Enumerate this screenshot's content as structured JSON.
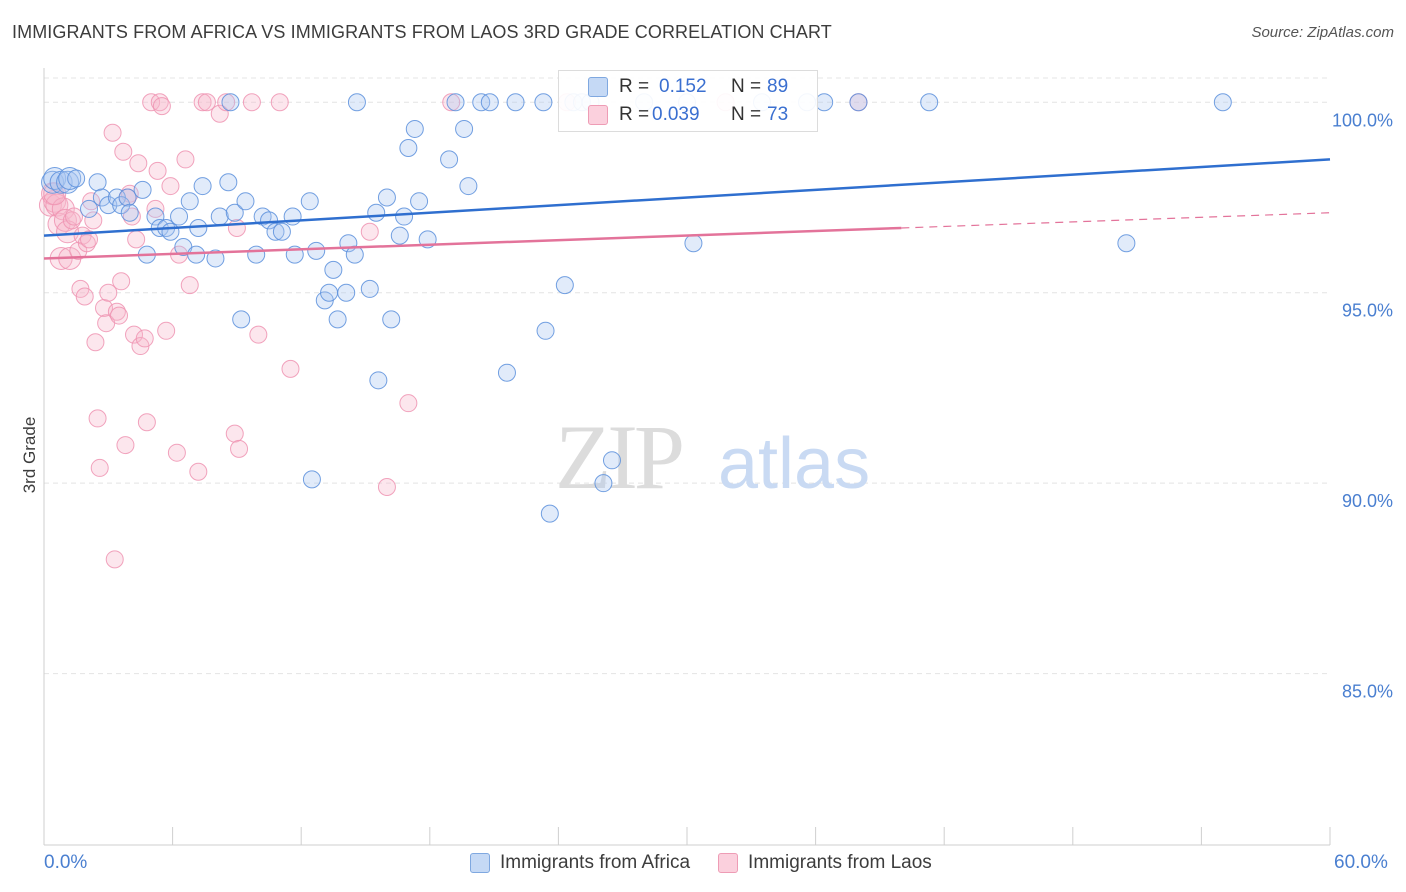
{
  "title": "IMMIGRANTS FROM AFRICA VS IMMIGRANTS FROM LAOS 3RD GRADE CORRELATION CHART",
  "source": "Source: ZipAtlas.com",
  "watermark": {
    "zip": "ZIP",
    "atlas": "atlas"
  },
  "colors": {
    "blue": "#5b8fdc",
    "blue_line": "#2f6fcf",
    "pink": "#ee8fae",
    "pink_line": "#e3739a",
    "axis_text": "#4a7fd0",
    "grid": "#e4e4e4"
  },
  "legend_box": {
    "rows": [
      {
        "r_label": "R =",
        "r_value": "0.152",
        "n_label": "N =",
        "n_value": "89"
      },
      {
        "r_label": "R =",
        "r_value": "0.039",
        "n_label": "N =",
        "n_value": "73"
      }
    ]
  },
  "legend_bottom": [
    "Immigrants from Africa",
    "Immigrants from Laos"
  ],
  "chart_data": {
    "type": "scatter",
    "title": "IMMIGRANTS FROM AFRICA VS IMMIGRANTS FROM LAOS 3RD GRADE CORRELATION CHART",
    "xlabel": "",
    "ylabel": "3rd Grade",
    "xlim": [
      0,
      60
    ],
    "ylim": [
      80.5,
      100.9
    ],
    "x_tick_labels": [
      "0.0%",
      "60.0%"
    ],
    "y_ticks": [
      85,
      90,
      95,
      100
    ],
    "y_tick_labels": [
      "85.0%",
      "90.0%",
      "95.0%",
      "100.0%"
    ],
    "series": [
      {
        "name": "Immigrants from Africa",
        "R": 0.152,
        "N": 89,
        "trend": {
          "x": [
            0,
            60
          ],
          "y": [
            96.5,
            98.5
          ]
        },
        "points": [
          [
            0.4,
            97.9
          ],
          [
            0.5,
            98.0
          ],
          [
            0.8,
            97.9
          ],
          [
            1.1,
            97.9
          ],
          [
            1.2,
            98.0
          ],
          [
            1.5,
            98.0
          ],
          [
            2.1,
            97.2
          ],
          [
            2.5,
            97.9
          ],
          [
            2.7,
            97.5
          ],
          [
            3.0,
            97.3
          ],
          [
            3.4,
            97.5
          ],
          [
            3.6,
            97.3
          ],
          [
            3.9,
            97.5
          ],
          [
            4.0,
            97.1
          ],
          [
            4.6,
            97.7
          ],
          [
            4.8,
            96.0
          ],
          [
            5.2,
            97.0
          ],
          [
            5.4,
            96.7
          ],
          [
            5.7,
            96.7
          ],
          [
            5.9,
            96.6
          ],
          [
            6.3,
            97.0
          ],
          [
            6.5,
            96.2
          ],
          [
            6.8,
            97.4
          ],
          [
            7.1,
            96.0
          ],
          [
            7.2,
            96.7
          ],
          [
            7.4,
            97.8
          ],
          [
            8.0,
            95.9
          ],
          [
            8.2,
            97.0
          ],
          [
            8.6,
            97.9
          ],
          [
            8.9,
            97.1
          ],
          [
            9.2,
            94.3
          ],
          [
            9.4,
            97.4
          ],
          [
            9.9,
            96.0
          ],
          [
            10.2,
            97.0
          ],
          [
            10.5,
            96.9
          ],
          [
            10.8,
            96.6
          ],
          [
            11.1,
            96.6
          ],
          [
            11.6,
            97.0
          ],
          [
            11.7,
            96.0
          ],
          [
            12.4,
            97.4
          ],
          [
            12.5,
            90.1
          ],
          [
            12.7,
            96.1
          ],
          [
            13.1,
            94.8
          ],
          [
            13.3,
            95.0
          ],
          [
            13.5,
            95.6
          ],
          [
            13.7,
            94.3
          ],
          [
            14.1,
            95.0
          ],
          [
            14.2,
            96.3
          ],
          [
            14.5,
            96.0
          ],
          [
            14.6,
            100.0
          ],
          [
            15.2,
            95.1
          ],
          [
            15.5,
            97.1
          ],
          [
            15.6,
            92.7
          ],
          [
            16.0,
            97.5
          ],
          [
            16.2,
            94.3
          ],
          [
            16.6,
            96.5
          ],
          [
            16.8,
            97.0
          ],
          [
            17.0,
            98.8
          ],
          [
            17.3,
            99.3
          ],
          [
            17.5,
            97.4
          ],
          [
            17.9,
            96.4
          ],
          [
            18.9,
            98.5
          ],
          [
            19.2,
            100.0
          ],
          [
            19.6,
            99.3
          ],
          [
            19.8,
            97.8
          ],
          [
            20.4,
            100.0
          ],
          [
            20.8,
            100.0
          ],
          [
            21.6,
            92.9
          ],
          [
            22.0,
            100.0
          ],
          [
            23.3,
            100.0
          ],
          [
            23.4,
            94.0
          ],
          [
            23.6,
            89.2
          ],
          [
            24.3,
            95.2
          ],
          [
            24.7,
            100.0
          ],
          [
            25.1,
            100.0
          ],
          [
            25.5,
            100.0
          ],
          [
            26.1,
            90.0
          ],
          [
            26.5,
            90.6
          ],
          [
            28.0,
            100.0
          ],
          [
            30.0,
            100.0
          ],
          [
            30.3,
            96.3
          ],
          [
            33.5,
            100.0
          ],
          [
            35.6,
            100.0
          ],
          [
            36.4,
            100.0
          ],
          [
            38.0,
            100.0
          ],
          [
            41.3,
            100.0
          ],
          [
            50.5,
            96.3
          ],
          [
            55.0,
            100.0
          ],
          [
            8.7,
            100.0
          ]
        ]
      },
      {
        "name": "Immigrants from Laos",
        "R": 0.039,
        "N": 73,
        "trend": {
          "x": [
            0,
            40
          ],
          "y": [
            95.9,
            96.7
          ]
        },
        "trend_dashed": {
          "x": [
            40,
            60
          ],
          "y": [
            96.7,
            97.1
          ]
        },
        "points": [
          [
            0.3,
            97.3
          ],
          [
            0.4,
            97.6
          ],
          [
            0.5,
            97.4
          ],
          [
            0.6,
            97.3
          ],
          [
            0.7,
            96.8
          ],
          [
            0.8,
            95.9
          ],
          [
            0.9,
            97.2
          ],
          [
            1.0,
            96.9
          ],
          [
            1.1,
            96.6
          ],
          [
            1.2,
            95.9
          ],
          [
            1.3,
            96.9
          ],
          [
            1.4,
            97.0
          ],
          [
            1.6,
            96.1
          ],
          [
            1.7,
            95.1
          ],
          [
            1.8,
            96.5
          ],
          [
            1.9,
            94.9
          ],
          [
            2.0,
            96.3
          ],
          [
            2.1,
            96.4
          ],
          [
            2.2,
            97.4
          ],
          [
            2.4,
            93.7
          ],
          [
            2.5,
            91.7
          ],
          [
            2.6,
            90.4
          ],
          [
            2.8,
            94.6
          ],
          [
            2.9,
            94.2
          ],
          [
            3.0,
            95.0
          ],
          [
            3.2,
            99.2
          ],
          [
            3.3,
            88.0
          ],
          [
            3.4,
            94.5
          ],
          [
            3.5,
            94.4
          ],
          [
            3.6,
            95.3
          ],
          [
            3.7,
            98.7
          ],
          [
            3.8,
            91.0
          ],
          [
            4.0,
            97.6
          ],
          [
            4.1,
            97.0
          ],
          [
            4.2,
            93.9
          ],
          [
            4.3,
            96.4
          ],
          [
            4.4,
            98.4
          ],
          [
            4.5,
            93.6
          ],
          [
            4.7,
            93.8
          ],
          [
            4.8,
            91.6
          ],
          [
            5.0,
            100.0
          ],
          [
            5.2,
            97.2
          ],
          [
            5.3,
            98.2
          ],
          [
            5.4,
            100.0
          ],
          [
            5.5,
            99.9
          ],
          [
            5.7,
            94.0
          ],
          [
            5.9,
            97.8
          ],
          [
            6.2,
            90.8
          ],
          [
            6.3,
            96.0
          ],
          [
            6.6,
            98.5
          ],
          [
            6.8,
            95.2
          ],
          [
            7.2,
            90.3
          ],
          [
            7.4,
            100.0
          ],
          [
            7.6,
            100.0
          ],
          [
            8.2,
            99.7
          ],
          [
            8.5,
            100.0
          ],
          [
            8.9,
            91.3
          ],
          [
            9.0,
            96.7
          ],
          [
            9.1,
            90.9
          ],
          [
            10.0,
            93.9
          ],
          [
            11.0,
            100.0
          ],
          [
            11.5,
            93.0
          ],
          [
            15.2,
            96.6
          ],
          [
            16.0,
            89.9
          ],
          [
            17.0,
            92.1
          ],
          [
            19.0,
            100.0
          ],
          [
            24.4,
            100.0
          ],
          [
            31.8,
            100.0
          ],
          [
            38.0,
            100.0
          ],
          [
            0.5,
            97.6
          ],
          [
            2.3,
            96.9
          ],
          [
            3.9,
            97.5
          ],
          [
            9.7,
            100.0
          ]
        ]
      }
    ]
  }
}
